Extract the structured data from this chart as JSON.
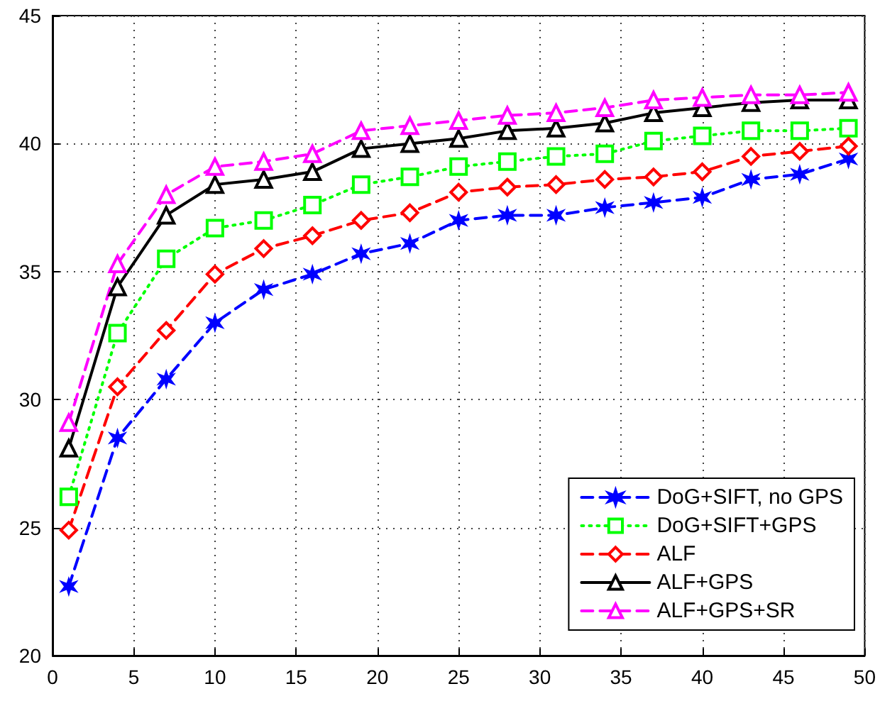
{
  "chart_data": {
    "type": "line",
    "x": [
      1,
      4,
      7,
      10,
      13,
      16,
      19,
      22,
      25,
      28,
      31,
      34,
      37,
      40,
      43,
      46,
      49
    ],
    "series": [
      {
        "name": "DoG+SIFT, no GPS",
        "color": "#0000ff",
        "marker": "cross",
        "line_style": "dashed",
        "values": [
          22.7,
          28.5,
          30.8,
          33.0,
          34.3,
          34.9,
          35.7,
          36.1,
          37.0,
          37.2,
          37.2,
          37.5,
          37.7,
          37.9,
          38.6,
          38.8,
          39.4
        ]
      },
      {
        "name": "DoG+SIFT+GPS",
        "color": "#00ff00",
        "marker": "square",
        "line_style": "dotted",
        "values": [
          26.2,
          32.6,
          35.5,
          36.7,
          37.0,
          37.6,
          38.4,
          38.7,
          39.1,
          39.3,
          39.5,
          39.6,
          40.1,
          40.3,
          40.5,
          40.5,
          40.6
        ]
      },
      {
        "name": "ALF",
        "color": "#ff0000",
        "marker": "diamond",
        "line_style": "dashed",
        "values": [
          24.9,
          30.5,
          32.7,
          34.9,
          35.9,
          36.4,
          37.0,
          37.3,
          38.1,
          38.3,
          38.4,
          38.6,
          38.7,
          38.9,
          39.5,
          39.7,
          39.9
        ]
      },
      {
        "name": "ALF+GPS",
        "color": "#000000",
        "marker": "triangle",
        "line_style": "solid",
        "values": [
          28.1,
          34.4,
          37.2,
          38.4,
          38.6,
          38.9,
          39.8,
          40.0,
          40.2,
          40.5,
          40.6,
          40.8,
          41.2,
          41.4,
          41.6,
          41.7,
          41.7
        ]
      },
      {
        "name": "ALF+GPS+SR",
        "color": "#ff00ff",
        "marker": "triangle",
        "line_style": "dashed",
        "values": [
          29.1,
          35.3,
          38.0,
          39.1,
          39.3,
          39.6,
          40.5,
          40.7,
          40.9,
          41.1,
          41.2,
          41.4,
          41.7,
          41.8,
          41.9,
          41.9,
          42.0
        ]
      }
    ],
    "xlim": [
      0,
      50
    ],
    "xticks": [
      0,
      5,
      10,
      15,
      20,
      25,
      30,
      35,
      40,
      45,
      50
    ],
    "ylim": [
      20,
      45
    ],
    "yticks": [
      20,
      25,
      30,
      35,
      40,
      45
    ],
    "grid": true,
    "legend": "bottom right"
  }
}
